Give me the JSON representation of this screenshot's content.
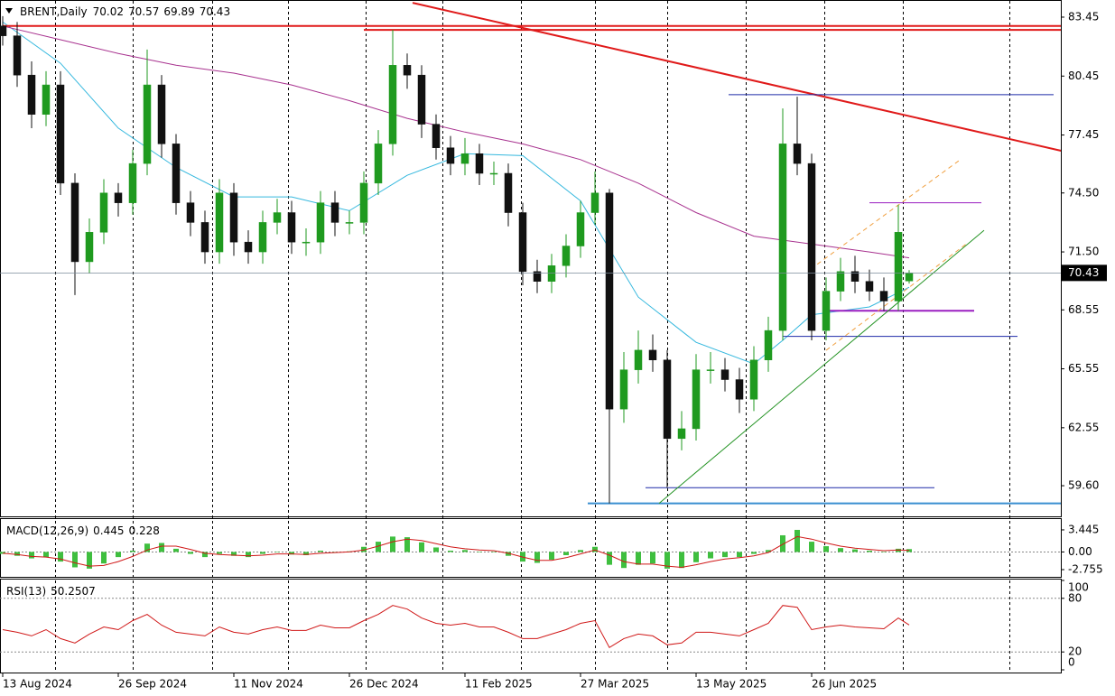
{
  "chart_data": {
    "type": "candlestick",
    "title": "BRENT,Daily",
    "x": [
      0,
      4,
      8,
      12,
      16,
      20,
      24,
      28,
      32,
      36,
      40,
      44,
      48,
      52,
      56,
      60,
      64,
      68,
      72,
      76,
      80,
      84,
      88,
      92,
      96,
      100,
      104,
      108,
      112,
      116,
      120,
      124,
      128,
      132,
      136,
      140,
      144,
      148,
      152,
      156,
      160,
      164,
      168,
      172,
      176,
      180,
      184,
      188,
      192,
      196,
      200,
      204,
      208,
      212,
      216,
      220,
      224,
      228,
      232,
      236,
      240,
      244,
      248,
      251
    ],
    "open": [
      83,
      82.5,
      80.5,
      78.5,
      80,
      75,
      71,
      72.5,
      74.5,
      74,
      76,
      80,
      77,
      74,
      73,
      71.5,
      74.5,
      72,
      71.5,
      73,
      73.5,
      72,
      72,
      74,
      73,
      73,
      75,
      77,
      81,
      80.5,
      78,
      76.8,
      76,
      76.5,
      75.5,
      75.5,
      73.5,
      70.5,
      70,
      70.8,
      71.8,
      73.5,
      74.5,
      63.5,
      65.5,
      66.5,
      66,
      62,
      62.5,
      65.5,
      65.5,
      65,
      64,
      66,
      67.5,
      77,
      76,
      67.5,
      69.5,
      70.5,
      70,
      69.5,
      69,
      70.02
    ],
    "high": [
      83.5,
      83.2,
      81.2,
      80.7,
      80.7,
      75.5,
      73.2,
      75.2,
      75,
      76.7,
      81.8,
      80.5,
      77.5,
      74.6,
      73.6,
      75.2,
      75,
      72.6,
      73.6,
      74.2,
      74.1,
      72.7,
      74.6,
      74.6,
      73.6,
      75.6,
      77.7,
      82.8,
      81.6,
      81,
      78.5,
      77.4,
      77.3,
      77,
      76.1,
      76,
      74,
      71.1,
      71.4,
      72.4,
      74.1,
      75.6,
      74.7,
      66.4,
      67.5,
      67.3,
      66.5,
      63.4,
      66.3,
      66.4,
      66.1,
      65.6,
      66.7,
      68.2,
      78.8,
      79.4,
      76.5,
      70.2,
      71.2,
      71.3,
      70.6,
      70.2,
      73.9,
      70.57
    ],
    "low": [
      82,
      79.9,
      77.8,
      77.9,
      74.4,
      69.3,
      70.4,
      71.9,
      73.3,
      73.4,
      75.4,
      76.3,
      73.4,
      72.3,
      70.9,
      70.9,
      71.3,
      70.9,
      70.9,
      72.4,
      71.4,
      71.3,
      71.4,
      72.3,
      72.4,
      72.4,
      74.4,
      76.4,
      79.8,
      77.3,
      76.2,
      75.4,
      75.4,
      74.9,
      74.9,
      72.8,
      69.8,
      69.4,
      69.4,
      70.2,
      71.2,
      72.9,
      58.7,
      62.8,
      64.8,
      65.4,
      59.5,
      61.4,
      61.9,
      64.8,
      64.4,
      63.3,
      63.4,
      65.4,
      67,
      75.4,
      67,
      67,
      69,
      69.4,
      69,
      68.5,
      68.5,
      69.89
    ],
    "close": [
      82.5,
      80.5,
      78.5,
      80,
      75,
      71,
      72.5,
      74.5,
      74,
      76,
      80,
      77,
      74,
      73,
      71.5,
      74.5,
      72,
      71.5,
      73,
      73.5,
      72,
      72,
      74,
      73,
      73,
      75,
      77,
      81,
      80.5,
      78,
      76.8,
      76,
      76.5,
      75.5,
      75.5,
      73.5,
      70.5,
      70,
      70.8,
      71.8,
      73.5,
      74.5,
      63.5,
      65.5,
      66.5,
      66,
      62,
      62.5,
      65.5,
      65.5,
      65,
      64,
      66,
      67.5,
      77,
      76,
      67.5,
      69.5,
      70.5,
      70,
      69.5,
      69,
      72.5,
      70.43
    ],
    "up_color": "#1f9a1f",
    "down_color": "#111111",
    "xlim": [
      -0.75,
      293
    ],
    "ylim": [
      58.04,
      84.23
    ],
    "yticks": [
      83.45,
      80.45,
      77.45,
      {
        "value": 74.5,
        "label": "74.50"
      },
      {
        "value": 71.5,
        "label": "71.50"
      },
      68.55,
      65.55,
      62.55,
      {
        "value": 59.6,
        "label": "59.60"
      }
    ],
    "xticks": [
      {
        "value": 0,
        "label": "13 Aug 2024"
      },
      {
        "value": 32,
        "label": "26 Sep 2024"
      },
      {
        "value": 64,
        "label": "11 Nov 2024"
      },
      {
        "value": 96,
        "label": "26 Dec 2024"
      },
      {
        "value": 128,
        "label": "11 Feb 2025"
      },
      {
        "value": 160,
        "label": "27 Mar 2025"
      },
      {
        "value": 192,
        "label": "13 May 2025"
      },
      {
        "value": 224,
        "label": "26 Jun 2025"
      }
    ],
    "xgrid": [
      14.5,
      36,
      58,
      79,
      100.5,
      121.75,
      143.5,
      164,
      184,
      205.75,
      227.5,
      249.25,
      278.75
    ],
    "moving_averages": [
      {
        "color": "#35b8de",
        "x": [
          0,
          16,
          32,
          48,
          64,
          80,
          96,
          112,
          128,
          144,
          160,
          176,
          192,
          208,
          216,
          224,
          240,
          251
        ],
        "values": [
          83.2,
          81.1,
          77.8,
          75.8,
          74.3,
          74.3,
          73.6,
          75.4,
          76.5,
          76.4,
          74.1,
          69.2,
          66.9,
          65.8,
          67,
          68.3,
          68.7,
          69.7
        ]
      },
      {
        "color": "#a8328f",
        "x": [
          0,
          16,
          32,
          48,
          64,
          80,
          96,
          112,
          128,
          144,
          160,
          176,
          192,
          208,
          224,
          240,
          251
        ],
        "values": [
          83,
          82.3,
          81.6,
          81,
          80.6,
          80,
          79.2,
          78.3,
          77.6,
          77,
          76.2,
          75,
          73.5,
          72.3,
          71.9,
          71.5,
          71.2
        ]
      }
    ],
    "objects": [
      {
        "color": "#e01a1a",
        "width": 2,
        "x": [
          0,
          293
        ],
        "y": [
          83,
          83
        ]
      },
      {
        "color": "#e01a1a",
        "width": 2,
        "x": [
          100,
          293
        ],
        "y": [
          82.8,
          82.8
        ]
      },
      {
        "color": "#e01a1a",
        "width": 2,
        "x": [
          113.5,
          294.25
        ],
        "y": [
          84.18,
          76.6
        ]
      },
      {
        "color": "#1e2aa8",
        "width": 1,
        "x": [
          201,
          291
        ],
        "y": [
          79.5,
          79.5
        ]
      },
      {
        "color": "#9a1fc0",
        "width": 1,
        "x": [
          240,
          271
        ],
        "y": [
          74,
          74
        ]
      },
      {
        "color": "#9a1fc0",
        "width": 2,
        "x": [
          228,
          269
        ],
        "y": [
          68.5,
          68.5
        ]
      },
      {
        "color": "#1e2aa8",
        "width": 1,
        "x": [
          216,
          281
        ],
        "y": [
          67.2,
          67.2
        ]
      },
      {
        "color": "#1e2aa8",
        "width": 1,
        "x": [
          178,
          258
        ],
        "y": [
          59.5,
          59.5
        ]
      },
      {
        "color": "#3a8fd0",
        "width": 2,
        "x": [
          162,
          293
        ],
        "y": [
          58.7,
          58.7
        ]
      },
      {
        "color": "#239323",
        "width": 1,
        "x": [
          181.75,
          271.75
        ],
        "y": [
          58.7,
          72.6
        ]
      },
      {
        "color": "#f0a040",
        "width": 1,
        "dashed": true,
        "x": [
          223.75,
          264.75
        ],
        "y": [
          70.63,
          76.14
        ]
      },
      {
        "color": "#f0a040",
        "width": 1,
        "dashed": true,
        "x": [
          228,
          266.75
        ],
        "y": [
          66.49,
          71.9
        ]
      }
    ],
    "macd": {
      "title": "MACD(12,26,9)",
      "hist_color": "#3fbf3f",
      "signal_color": "#d01818",
      "histogram": [
        -0.3,
        -0.6,
        -1.0,
        -0.8,
        -1.5,
        -2.4,
        -2.6,
        -1.8,
        -0.8,
        0.2,
        1.3,
        1.4,
        0.5,
        -0.3,
        -0.8,
        -0.3,
        -0.6,
        -0.8,
        -0.3,
        0.0,
        -0.4,
        -0.5,
        0.2,
        0.0,
        0.1,
        0.8,
        1.6,
        2.4,
        2.3,
        1.5,
        0.7,
        0.2,
        0.3,
        0.0,
        0.0,
        -0.6,
        -1.5,
        -1.7,
        -1.2,
        -0.5,
        0.3,
        0.8,
        -2.0,
        -2.5,
        -2.0,
        -1.8,
        -2.6,
        -2.5,
        -1.6,
        -1.0,
        -0.8,
        -0.8,
        -0.3,
        0.3,
        2.6,
        3.445,
        1.6,
        0.9,
        0.6,
        0.4,
        0.2,
        0.0,
        0.5,
        0.445
      ],
      "signal": [
        -0.2,
        -0.4,
        -0.7,
        -0.8,
        -1.1,
        -1.7,
        -2.2,
        -2.1,
        -1.5,
        -0.7,
        0.3,
        0.9,
        0.9,
        0.4,
        -0.2,
        -0.4,
        -0.5,
        -0.6,
        -0.5,
        -0.3,
        -0.3,
        -0.4,
        -0.2,
        -0.1,
        0.0,
        0.3,
        0.9,
        1.6,
        2.0,
        1.8,
        1.3,
        0.8,
        0.5,
        0.3,
        0.2,
        -0.2,
        -0.8,
        -1.3,
        -1.3,
        -0.9,
        -0.3,
        0.3,
        -0.5,
        -1.5,
        -1.9,
        -1.9,
        -2.2,
        -2.4,
        -2.0,
        -1.5,
        -1.1,
        -0.9,
        -0.6,
        -0.1,
        1.2,
        2.4,
        2.0,
        1.4,
        0.9,
        0.6,
        0.4,
        0.2,
        0.3,
        0.228
      ],
      "ylim": [
        -3.74,
        4.99
      ],
      "yticks": [
        3.445,
        {
          "value": 0,
          "label": "0.00"
        },
        -2.755
      ]
    },
    "rsi": {
      "title": "RSI(13)",
      "color": "#d01818",
      "values": [
        45,
        42,
        38,
        45,
        35,
        30,
        40,
        48,
        45,
        55,
        62,
        50,
        42,
        40,
        38,
        48,
        42,
        40,
        45,
        48,
        44,
        44,
        50,
        47,
        47,
        55,
        62,
        72,
        68,
        58,
        52,
        50,
        52,
        48,
        48,
        42,
        35,
        35,
        40,
        45,
        52,
        55,
        25,
        35,
        40,
        38,
        28,
        30,
        42,
        42,
        40,
        38,
        45,
        52,
        72,
        70,
        45,
        48,
        50,
        48,
        47,
        46,
        58,
        50.2507
      ],
      "ylim": [
        0,
        100
      ],
      "yticks": [
        100,
        80,
        20,
        0
      ]
    }
  }
}
